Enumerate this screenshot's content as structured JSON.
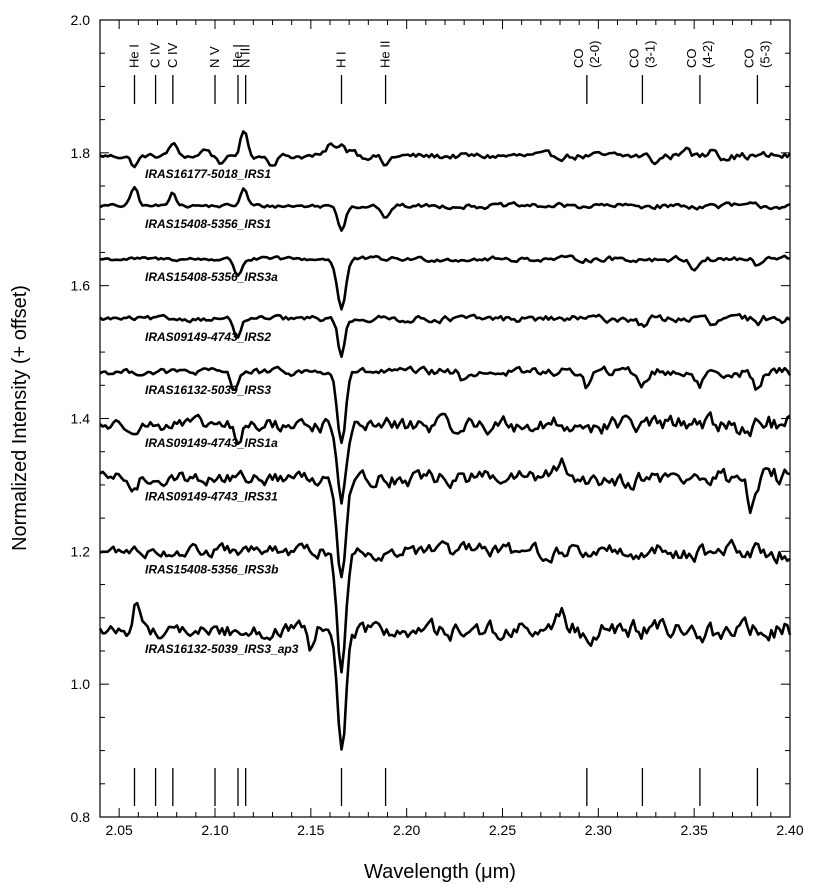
{
  "chart_data": {
    "type": "line",
    "title": "",
    "xlabel": "Wavelength (μm)",
    "ylabel": "Normalized Intensity (+ offset)",
    "xlim": [
      2.04,
      2.4
    ],
    "ylim": [
      0.8,
      2.0
    ],
    "x_ticks": [
      "2.05",
      "2.10",
      "2.15",
      "2.20",
      "2.25",
      "2.30",
      "2.35",
      "2.40"
    ],
    "y_ticks": [
      "0.8",
      "1.0",
      "1.2",
      "1.4",
      "1.6",
      "1.8",
      "2.0"
    ],
    "grid": false,
    "legend": "none",
    "line_identifications": [
      {
        "name": "He I",
        "wavelength": 2.058
      },
      {
        "name": "C IV",
        "wavelength": 2.069
      },
      {
        "name": "C IV",
        "wavelength": 2.078
      },
      {
        "name": "N V",
        "wavelength": 2.1
      },
      {
        "name": "He I",
        "wavelength": 2.112
      },
      {
        "name": "N III",
        "wavelength": 2.116
      },
      {
        "name": "H I",
        "wavelength": 2.166
      },
      {
        "name": "He II",
        "wavelength": 2.189
      },
      {
        "name": "CO (2-0)",
        "wavelength": 2.294
      },
      {
        "name": "CO (3-1)",
        "wavelength": 2.323
      },
      {
        "name": "CO (4-2)",
        "wavelength": 2.353
      },
      {
        "name": "CO (5-3)",
        "wavelength": 2.383
      }
    ],
    "series": [
      {
        "name": "IRAS16177-5018_IRS1",
        "continuum": 1.795,
        "noise": 0.004,
        "features": [
          [
            2.058,
            -0.015
          ],
          [
            2.078,
            0.02
          ],
          [
            2.095,
            0.012
          ],
          [
            2.104,
            -0.012
          ],
          [
            2.115,
            0.038
          ],
          [
            2.13,
            -0.012
          ],
          [
            2.16,
            0.018
          ],
          [
            2.166,
            0.02
          ],
          [
            2.172,
            0.012
          ],
          [
            2.189,
            -0.015
          ],
          [
            2.345,
            0.015
          ],
          [
            2.33,
            -0.01
          ],
          [
            2.36,
            0.015
          ]
        ]
      },
      {
        "name": "IRAS15408-5356_IRS1",
        "continuum": 1.72,
        "noise": 0.003,
        "features": [
          [
            2.058,
            0.028
          ],
          [
            2.078,
            0.022
          ],
          [
            2.115,
            0.025
          ],
          [
            2.166,
            -0.035
          ],
          [
            2.189,
            -0.022
          ]
        ]
      },
      {
        "name": "IRAS15408-5356_IRS3a",
        "continuum": 1.64,
        "noise": 0.003,
        "features": [
          [
            2.112,
            -0.025
          ],
          [
            2.166,
            -0.075
          ],
          [
            2.35,
            -0.015
          ],
          [
            2.383,
            -0.012
          ]
        ]
      },
      {
        "name": "IRAS09149-4743_IRS2",
        "continuum": 1.55,
        "noise": 0.004,
        "features": [
          [
            2.112,
            -0.03
          ],
          [
            2.166,
            -0.055
          ],
          [
            2.323,
            -0.01
          ],
          [
            2.36,
            -0.012
          ],
          [
            2.383,
            -0.012
          ]
        ]
      },
      {
        "name": "IRAS16132-5039_IRS3",
        "continuum": 1.47,
        "noise": 0.005,
        "features": [
          [
            2.11,
            -0.025
          ],
          [
            2.166,
            -0.105
          ],
          [
            2.23,
            -0.015
          ],
          [
            2.294,
            -0.022
          ],
          [
            2.323,
            -0.02
          ],
          [
            2.353,
            -0.022
          ],
          [
            2.383,
            -0.03
          ]
        ]
      },
      {
        "name": "IRAS09149-4743_IRS1a",
        "continuum": 1.39,
        "noise": 0.01,
        "features": [
          [
            2.112,
            -0.03
          ],
          [
            2.166,
            -0.12
          ],
          [
            2.35,
            0.02
          ]
        ]
      },
      {
        "name": "IRAS09149-4743_IRS31",
        "continuum": 1.31,
        "noise": 0.01,
        "features": [
          [
            2.058,
            -0.02
          ],
          [
            2.166,
            -0.14
          ],
          [
            2.28,
            0.025
          ],
          [
            2.38,
            -0.04
          ]
        ]
      },
      {
        "name": "IRAS15408-5356_IRS3b",
        "continuum": 1.2,
        "noise": 0.009,
        "features": [
          [
            2.166,
            -0.18
          ]
        ]
      },
      {
        "name": "IRAS16132-5039_IRS3_ap3",
        "continuum": 1.08,
        "noise": 0.011,
        "features": [
          [
            2.059,
            0.045
          ],
          [
            2.15,
            -0.03
          ],
          [
            2.166,
            -0.185
          ],
          [
            2.28,
            0.03
          ]
        ]
      }
    ]
  }
}
